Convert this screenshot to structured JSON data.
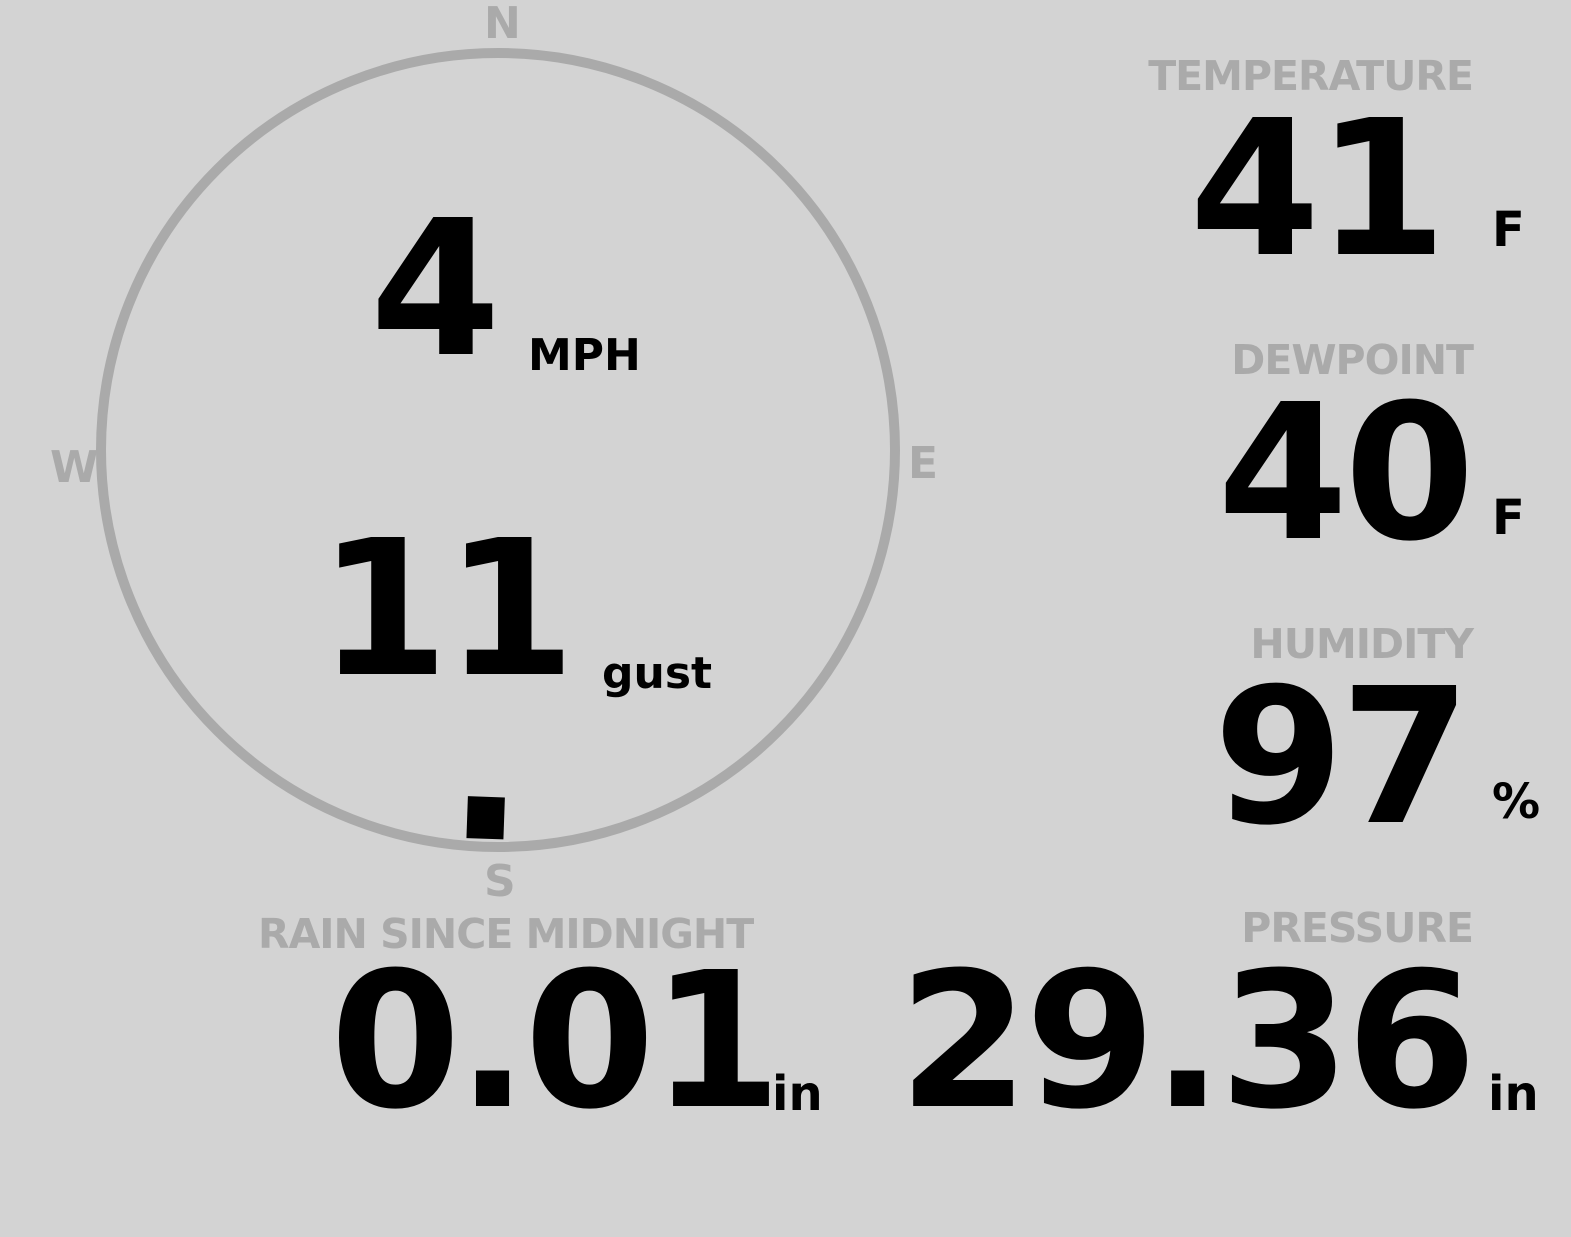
{
  "wind": {
    "compass": {
      "north": "N",
      "east": "E",
      "south": "S",
      "west": "W"
    },
    "speed": "4",
    "speed_unit": "MPH",
    "gust": "11",
    "gust_unit": "gust",
    "direction_degrees": 182
  },
  "temperature": {
    "label": "TEMPERATURE",
    "value": "41",
    "unit": "F"
  },
  "dewpoint": {
    "label": "DEWPOINT",
    "value": "40",
    "unit": "F"
  },
  "humidity": {
    "label": "HUMIDITY",
    "value": "97",
    "unit": "%"
  },
  "rain": {
    "label": "RAIN SINCE MIDNIGHT",
    "value": "0.01",
    "unit": "in"
  },
  "pressure": {
    "label": "PRESSURE",
    "value": "29.36",
    "unit": "in"
  },
  "colors": {
    "background": "#d3d3d3",
    "label": "#aaaaaa",
    "value": "#000000",
    "compass": "#aaaaaa"
  }
}
